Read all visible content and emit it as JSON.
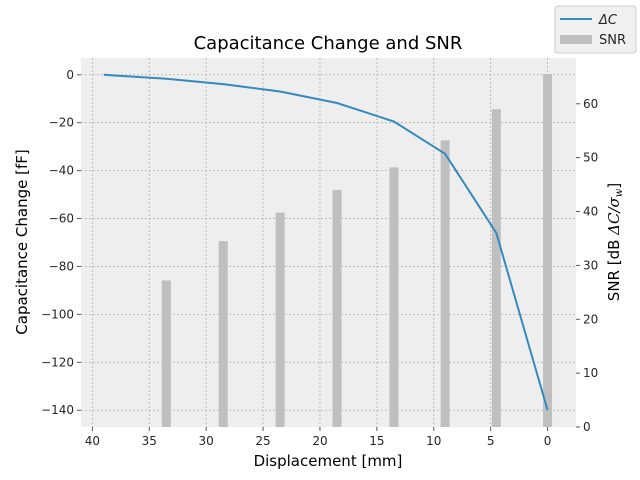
{
  "chart_data": {
    "type": "bar+line",
    "title": "Capacitance Change and SNR",
    "xlabel": "Displacement [mm]",
    "ylabel_left": "Capacitance Change [fF]",
    "ylabel_right_prefix": "SNR [dB ",
    "ylabel_right_expr": "ΔC/σ",
    "ylabel_right_sub": "w",
    "ylabel_right_suffix": "]",
    "xlim": [
      41,
      -2.5
    ],
    "xticks": [
      40,
      35,
      30,
      25,
      20,
      15,
      10,
      5,
      0
    ],
    "ylim_left": [
      -147,
      7
    ],
    "yticks_left": [
      0,
      -20,
      -40,
      -60,
      -80,
      -100,
      -120,
      -140
    ],
    "ylim_right": [
      0,
      68.5
    ],
    "yticks_right": [
      0,
      10,
      20,
      30,
      40,
      50,
      60
    ],
    "grid": true,
    "legend_position": "top-right (outside)",
    "series": [
      {
        "name": "ΔC",
        "name_display": "ΔC",
        "type": "line",
        "axis": "left",
        "color": "#348abd",
        "x": [
          39,
          33.5,
          28.5,
          23.5,
          18.5,
          13.5,
          9,
          4.5,
          0
        ],
        "y": [
          0,
          -1.7,
          -3.9,
          -7.0,
          -11.8,
          -19.5,
          -33.0,
          -66.0,
          -140.0
        ]
      },
      {
        "name": "SNR",
        "type": "bar",
        "axis": "right",
        "color": "#bfbfbf",
        "x": [
          33.5,
          28.5,
          23.5,
          18.5,
          13.5,
          9,
          4.5,
          0
        ],
        "y": [
          27.2,
          34.5,
          39.8,
          44.0,
          48.2,
          53.2,
          59.0,
          65.5
        ]
      }
    ]
  },
  "style": {
    "plot_background": "#eeeeee",
    "grid_color": "#b2b2b2",
    "line_color": "#348abd",
    "bar_color": "#bfbfbf"
  }
}
